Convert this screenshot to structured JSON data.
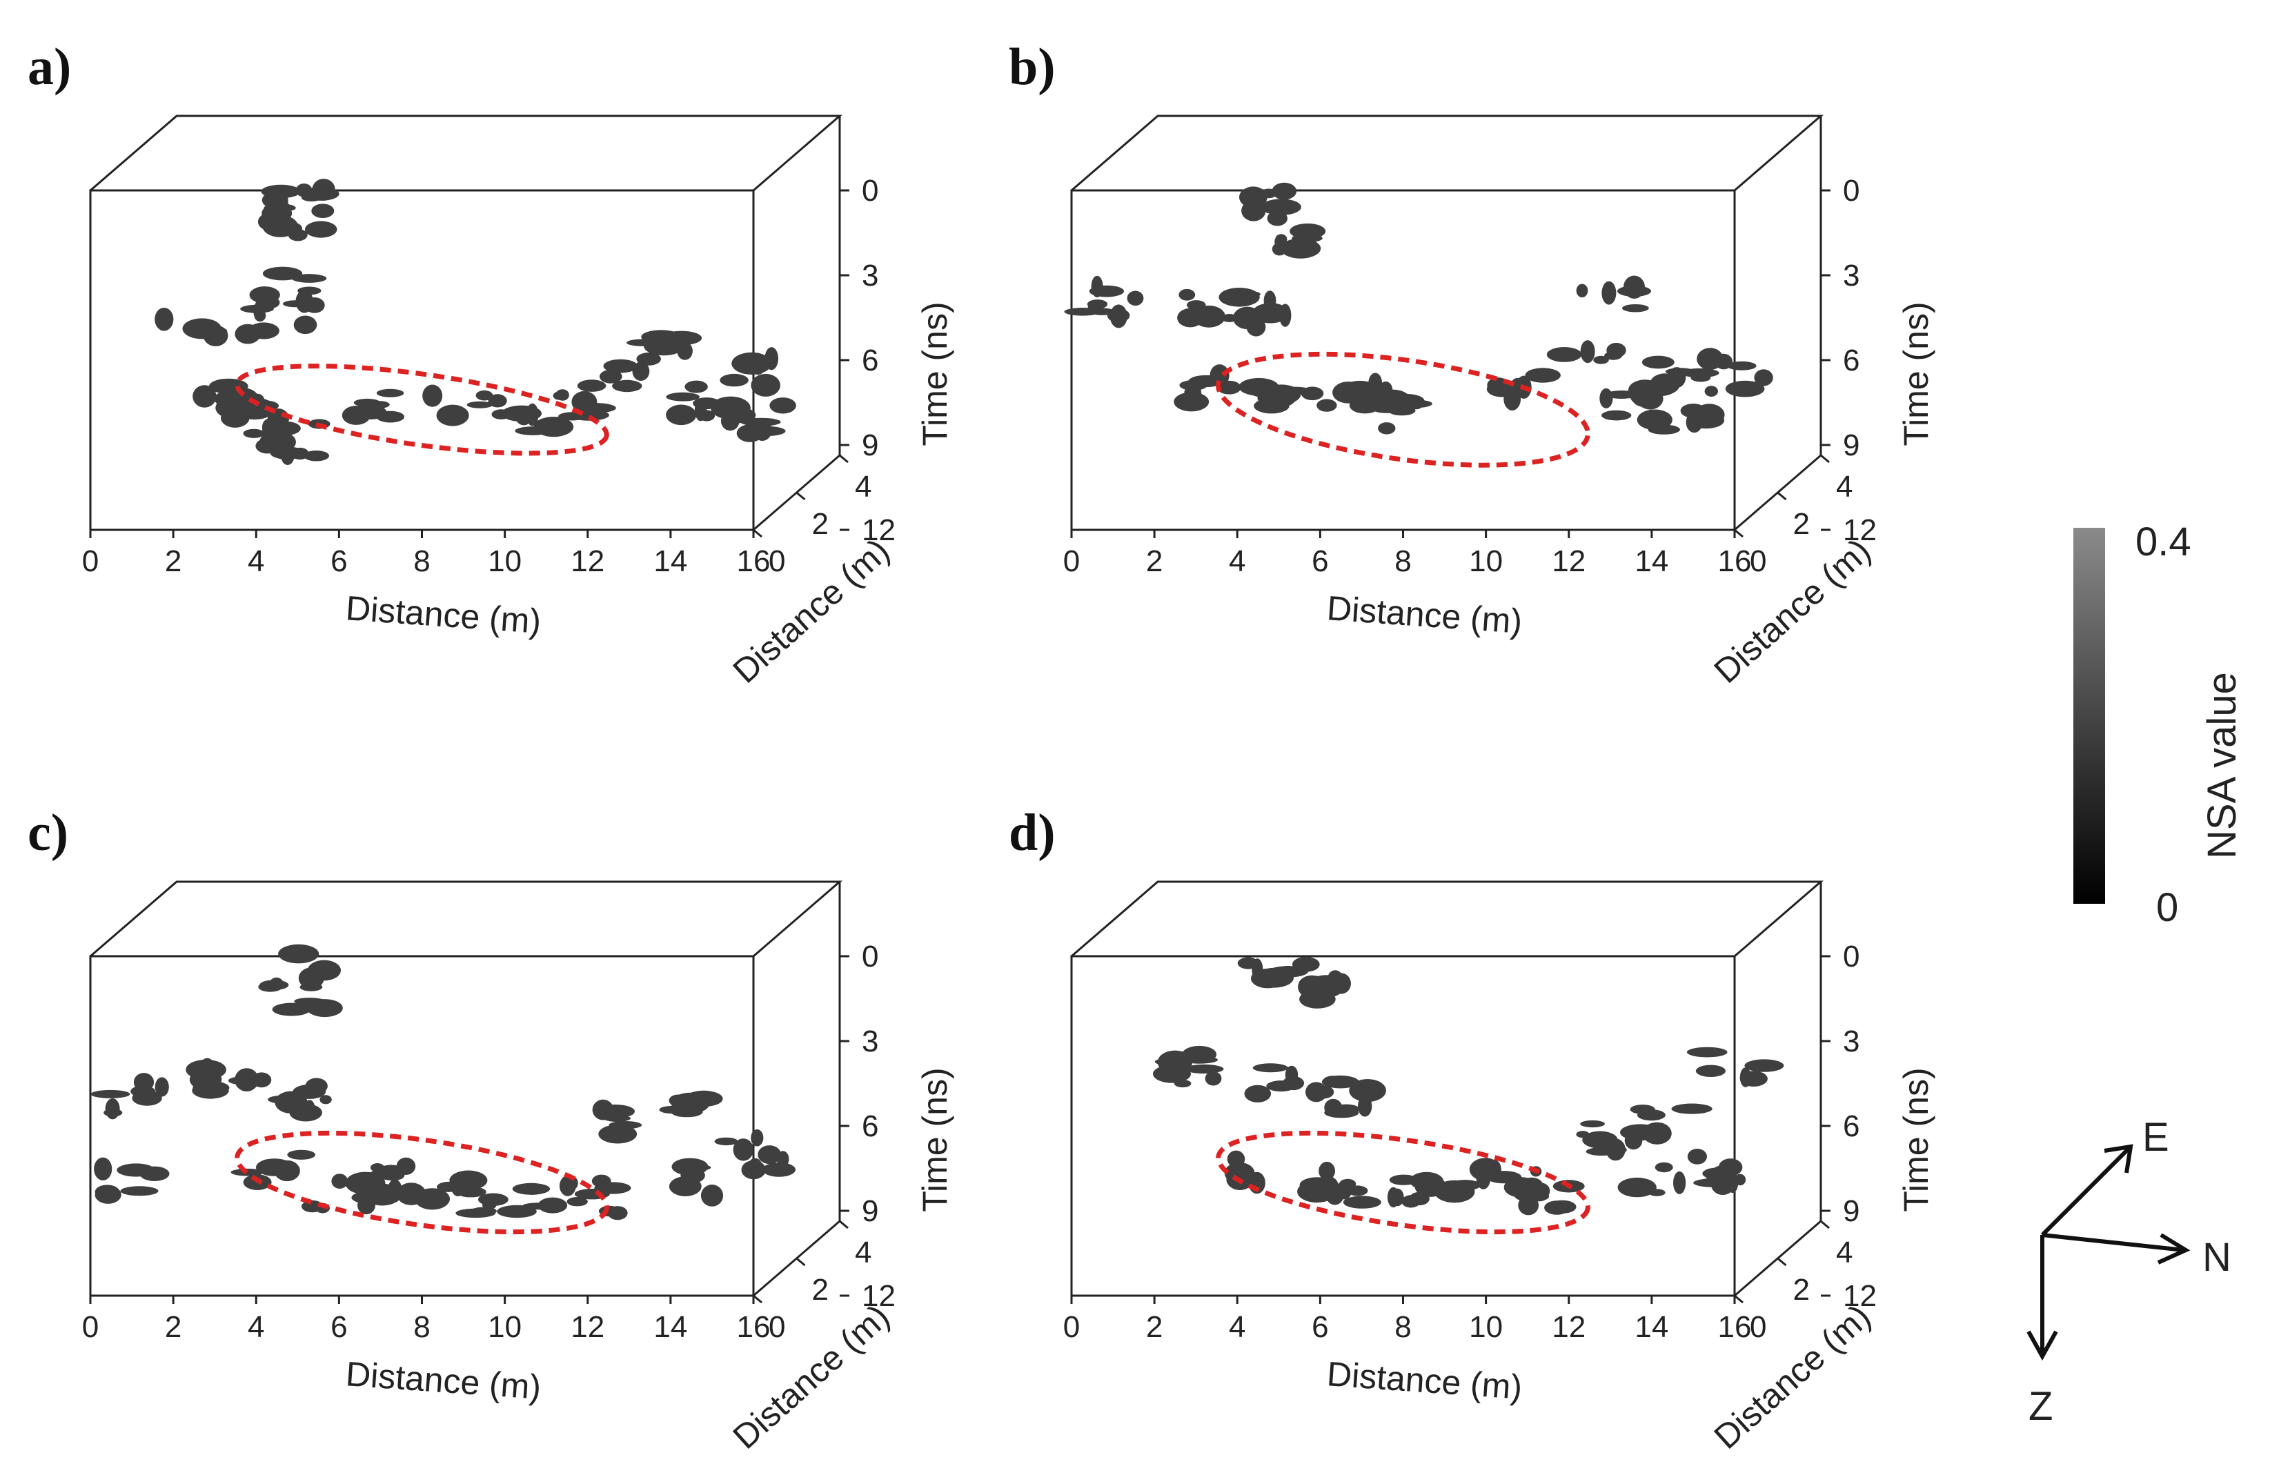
{
  "chart_data": [
    {
      "type": "3d-volume",
      "panel": "a)",
      "x_ticks": [
        "0",
        "2",
        "4",
        "6",
        "8",
        "10",
        "12",
        "14",
        "16"
      ],
      "xlabel": "Distance (m)",
      "y_ticks": [
        "0",
        "2",
        "4"
      ],
      "ylabel": "Distance (m)",
      "z_ticks": [
        "0",
        "3",
        "6",
        "9",
        "12"
      ],
      "zlabel": "Time (ns)",
      "xlim": [
        0,
        16
      ],
      "ylim": [
        0,
        4
      ],
      "zlim": [
        0,
        12
      ],
      "anomaly_zone": {
        "distance_range_m": [
          3.5,
          12.5
        ],
        "time_range_ns": [
          6.5,
          9
        ]
      },
      "clusters": [
        [
          5,
          0.5
        ],
        [
          5,
          1
        ],
        [
          4.8,
          3.5
        ],
        [
          4.5,
          4.5
        ],
        [
          2.5,
          5
        ],
        [
          3.5,
          7.5
        ],
        [
          4,
          8
        ],
        [
          5,
          8.8
        ],
        [
          7,
          7.5
        ],
        [
          9,
          7.5
        ],
        [
          10.5,
          8
        ],
        [
          12,
          7.5
        ],
        [
          13,
          6.5
        ],
        [
          14,
          5.5
        ],
        [
          14.5,
          7.5
        ],
        [
          16,
          6.5
        ],
        [
          16,
          8
        ]
      ]
    },
    {
      "type": "3d-volume",
      "panel": "b)",
      "x_ticks": [
        "0",
        "2",
        "4",
        "6",
        "8",
        "10",
        "12",
        "14",
        "16"
      ],
      "xlabel": "Distance (m)",
      "y_ticks": [
        "0",
        "2",
        "4"
      ],
      "ylabel": "Distance (m)",
      "z_ticks": [
        "0",
        "3",
        "6",
        "9",
        "12"
      ],
      "zlabel": "Time (ns)",
      "xlim": [
        0,
        16
      ],
      "ylim": [
        0,
        4
      ],
      "zlim": [
        0,
        12
      ],
      "anomaly_zone": {
        "distance_range_m": [
          3.5,
          12.5
        ],
        "time_range_ns": [
          6,
          9.5
        ]
      },
      "clusters": [
        [
          4.5,
          0.5
        ],
        [
          5,
          1.5
        ],
        [
          1,
          4
        ],
        [
          3.5,
          4
        ],
        [
          4.5,
          4.5
        ],
        [
          3.5,
          7
        ],
        [
          5,
          7.5
        ],
        [
          6.5,
          7.5
        ],
        [
          7.5,
          7
        ],
        [
          8,
          8
        ],
        [
          11,
          7
        ],
        [
          12.5,
          6
        ],
        [
          13.5,
          7.5
        ],
        [
          14.5,
          6.5
        ],
        [
          15,
          8
        ],
        [
          16,
          6.5
        ],
        [
          13,
          4
        ]
      ]
    },
    {
      "type": "3d-volume",
      "panel": "c)",
      "x_ticks": [
        "0",
        "2",
        "4",
        "6",
        "8",
        "10",
        "12",
        "14",
        "16"
      ],
      "xlabel": "Distance (m)",
      "y_ticks": [
        "0",
        "2",
        "4"
      ],
      "ylabel": "Distance (m)",
      "z_ticks": [
        "0",
        "3",
        "6",
        "9",
        "12"
      ],
      "zlabel": "Time (ns)",
      "xlim": [
        0,
        16
      ],
      "ylim": [
        0,
        4
      ],
      "zlim": [
        0,
        12
      ],
      "anomaly_zone": {
        "distance_range_m": [
          3.5,
          12.5
        ],
        "time_range_ns": [
          6.5,
          9.5
        ]
      },
      "clusters": [
        [
          5,
          0.5
        ],
        [
          5,
          1.5
        ],
        [
          1,
          5
        ],
        [
          1,
          8
        ],
        [
          3.5,
          4.5
        ],
        [
          5,
          5
        ],
        [
          4.5,
          7.5
        ],
        [
          6,
          8.5
        ],
        [
          7.5,
          8
        ],
        [
          9,
          8.5
        ],
        [
          10.5,
          8.5
        ],
        [
          12,
          8.5
        ],
        [
          13,
          6
        ],
        [
          14.5,
          5.5
        ],
        [
          15,
          8
        ],
        [
          16,
          7
        ]
      ]
    },
    {
      "type": "3d-volume",
      "panel": "d)",
      "x_ticks": [
        "0",
        "2",
        "4",
        "6",
        "8",
        "10",
        "12",
        "14",
        "16"
      ],
      "xlabel": "Distance (m)",
      "y_ticks": [
        "0",
        "2",
        "4"
      ],
      "ylabel": "Distance (m)",
      "z_ticks": [
        "0",
        "3",
        "6",
        "9",
        "12"
      ],
      "zlabel": "Time (ns)",
      "xlim": [
        0,
        16
      ],
      "ylim": [
        0,
        4
      ],
      "zlim": [
        0,
        12
      ],
      "anomaly_zone": {
        "distance_range_m": [
          3.5,
          12.5
        ],
        "time_range_ns": [
          6.5,
          9.5
        ]
      },
      "clusters": [
        [
          5,
          0.5
        ],
        [
          6,
          1
        ],
        [
          3,
          4
        ],
        [
          5,
          4.5
        ],
        [
          6.5,
          5
        ],
        [
          4.5,
          7.5
        ],
        [
          6,
          8
        ],
        [
          7.5,
          8.5
        ],
        [
          9,
          8.5
        ],
        [
          10.5,
          8
        ],
        [
          11.5,
          8.5
        ],
        [
          13,
          6.5
        ],
        [
          14.5,
          6
        ],
        [
          14,
          8
        ],
        [
          15.5,
          7.5
        ],
        [
          16,
          4
        ]
      ]
    }
  ],
  "colorbar": {
    "label": "NSA  value",
    "max_label": "0.4",
    "min_label": "0",
    "range": [
      0,
      0.4
    ],
    "colormap": "gray"
  },
  "orientation": {
    "east": "E",
    "north": "N",
    "depth": "Z"
  },
  "colors": {
    "anomaly_ellipse": "#d22222",
    "blob": "#3f3f3f"
  }
}
